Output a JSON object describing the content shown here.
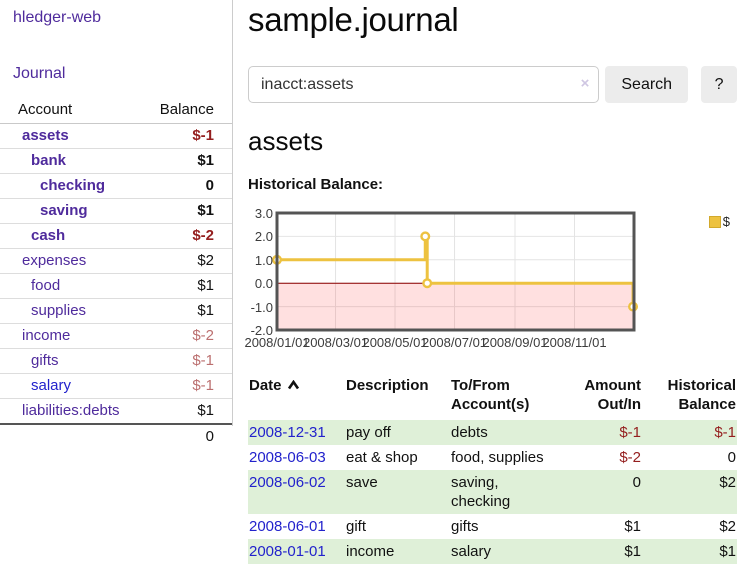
{
  "colors": {
    "link_purple": "#4f2b9c",
    "link_blue": "#2222cc",
    "negative_strong": "#941e1e",
    "negative_soft": "#bb6f6f",
    "table_stripe_green": "#dff0d8",
    "chart_line_gold": "#edc240",
    "zero_line_red": "#8b0000",
    "chart_border": "#545454",
    "grid_line": "#e4e4e4"
  },
  "sidebar": {
    "brand": "hledger-web",
    "nav": {
      "journal": "Journal"
    },
    "accounts_table": {
      "headers": {
        "account": "Account",
        "balance": "Balance"
      },
      "rows": [
        {
          "name": "assets",
          "depth": 1,
          "balance": "$-1",
          "bold": true,
          "negative": "strong",
          "link": "purple"
        },
        {
          "name": "bank",
          "depth": 2,
          "balance": "$1",
          "bold": true,
          "negative": null,
          "link": "purple"
        },
        {
          "name": "checking",
          "depth": 3,
          "balance": "0",
          "bold": true,
          "negative": null,
          "link": "purple"
        },
        {
          "name": "saving",
          "depth": 3,
          "balance": "$1",
          "bold": true,
          "negative": null,
          "link": "purple"
        },
        {
          "name": "cash",
          "depth": 2,
          "balance": "$-2",
          "bold": true,
          "negative": "strong",
          "link": "purple"
        },
        {
          "name": "expenses",
          "depth": 1,
          "balance": "$2",
          "bold": false,
          "negative": null,
          "link": "purple"
        },
        {
          "name": "food",
          "depth": 2,
          "balance": "$1",
          "bold": false,
          "negative": null,
          "link": "purple"
        },
        {
          "name": "supplies",
          "depth": 2,
          "balance": "$1",
          "bold": false,
          "negative": null,
          "link": "purple"
        },
        {
          "name": "income",
          "depth": 1,
          "balance": "$-2",
          "bold": false,
          "negative": "soft",
          "link": "purple"
        },
        {
          "name": "gifts",
          "depth": 2,
          "balance": "$-1",
          "bold": false,
          "negative": "soft",
          "link": "purple"
        },
        {
          "name": "salary",
          "depth": 2,
          "balance": "$-1",
          "bold": false,
          "negative": "soft",
          "link": "blue"
        },
        {
          "name": "liabilities:debts",
          "depth": 1,
          "balance": "$1",
          "bold": false,
          "negative": null,
          "link": "purple"
        }
      ],
      "total": "0"
    }
  },
  "header": {
    "title": "sample.journal"
  },
  "search": {
    "value": "inacct:assets",
    "clear_icon": "×",
    "button_label": "Search",
    "help_label": "?"
  },
  "account_page": {
    "heading": "assets",
    "chart_label": "Historical Balance:"
  },
  "chart_data": {
    "type": "line",
    "step": true,
    "title": "Historical Balance:",
    "x_range": [
      "2008/01/01",
      "2009/01/01"
    ],
    "y_range": [
      -2,
      3
    ],
    "x_ticks": [
      "2008/01/01",
      "2008/03/01",
      "2008/05/01",
      "2008/07/01",
      "2008/09/01",
      "2008/11/01"
    ],
    "y_ticks": [
      3.0,
      2.0,
      1.0,
      0.0,
      -1.0,
      -2.0
    ],
    "y_tick_labels": [
      "3.0",
      "2.0",
      "1.0",
      "0.0",
      "-1.0",
      "-2.0"
    ],
    "legend": {
      "label": "$",
      "position": "top-right"
    },
    "grid": true,
    "negative_region": {
      "below": 0
    },
    "series": [
      {
        "name": "$",
        "points": [
          [
            "2008/01/01",
            1
          ],
          [
            "2008/06/01",
            2
          ],
          [
            "2008/06/03",
            0
          ],
          [
            "2008/12/31",
            -1
          ]
        ]
      }
    ]
  },
  "transactions": {
    "columns": [
      {
        "line1": "Date",
        "line2": "",
        "align": "left",
        "sorted_asc": true
      },
      {
        "line1": "Description",
        "line2": "",
        "align": "left"
      },
      {
        "line1": "To/From",
        "line2": "Account(s)",
        "align": "left"
      },
      {
        "line1": "Amount",
        "line2": "Out/In",
        "align": "right"
      },
      {
        "line1": "Historical",
        "line2": "Balance",
        "align": "right"
      }
    ],
    "rows": [
      {
        "date": "2008-12-31",
        "description": "pay off",
        "accounts": "debts",
        "amount": "$-1",
        "amount_negative": true,
        "balance": "$-1",
        "balance_negative": true
      },
      {
        "date": "2008-06-03",
        "description": "eat & shop",
        "accounts": "food, supplies",
        "amount": "$-2",
        "amount_negative": true,
        "balance": "0",
        "balance_negative": false
      },
      {
        "date": "2008-06-02",
        "description": "save",
        "accounts": "saving, checking",
        "amount": "0",
        "amount_negative": false,
        "balance": "$2",
        "balance_negative": false
      },
      {
        "date": "2008-06-01",
        "description": "gift",
        "accounts": "gifts",
        "amount": "$1",
        "amount_negative": false,
        "balance": "$2",
        "balance_negative": false
      },
      {
        "date": "2008-01-01",
        "description": "income",
        "accounts": "salary",
        "amount": "$1",
        "amount_negative": false,
        "balance": "$1",
        "balance_negative": false
      }
    ]
  }
}
